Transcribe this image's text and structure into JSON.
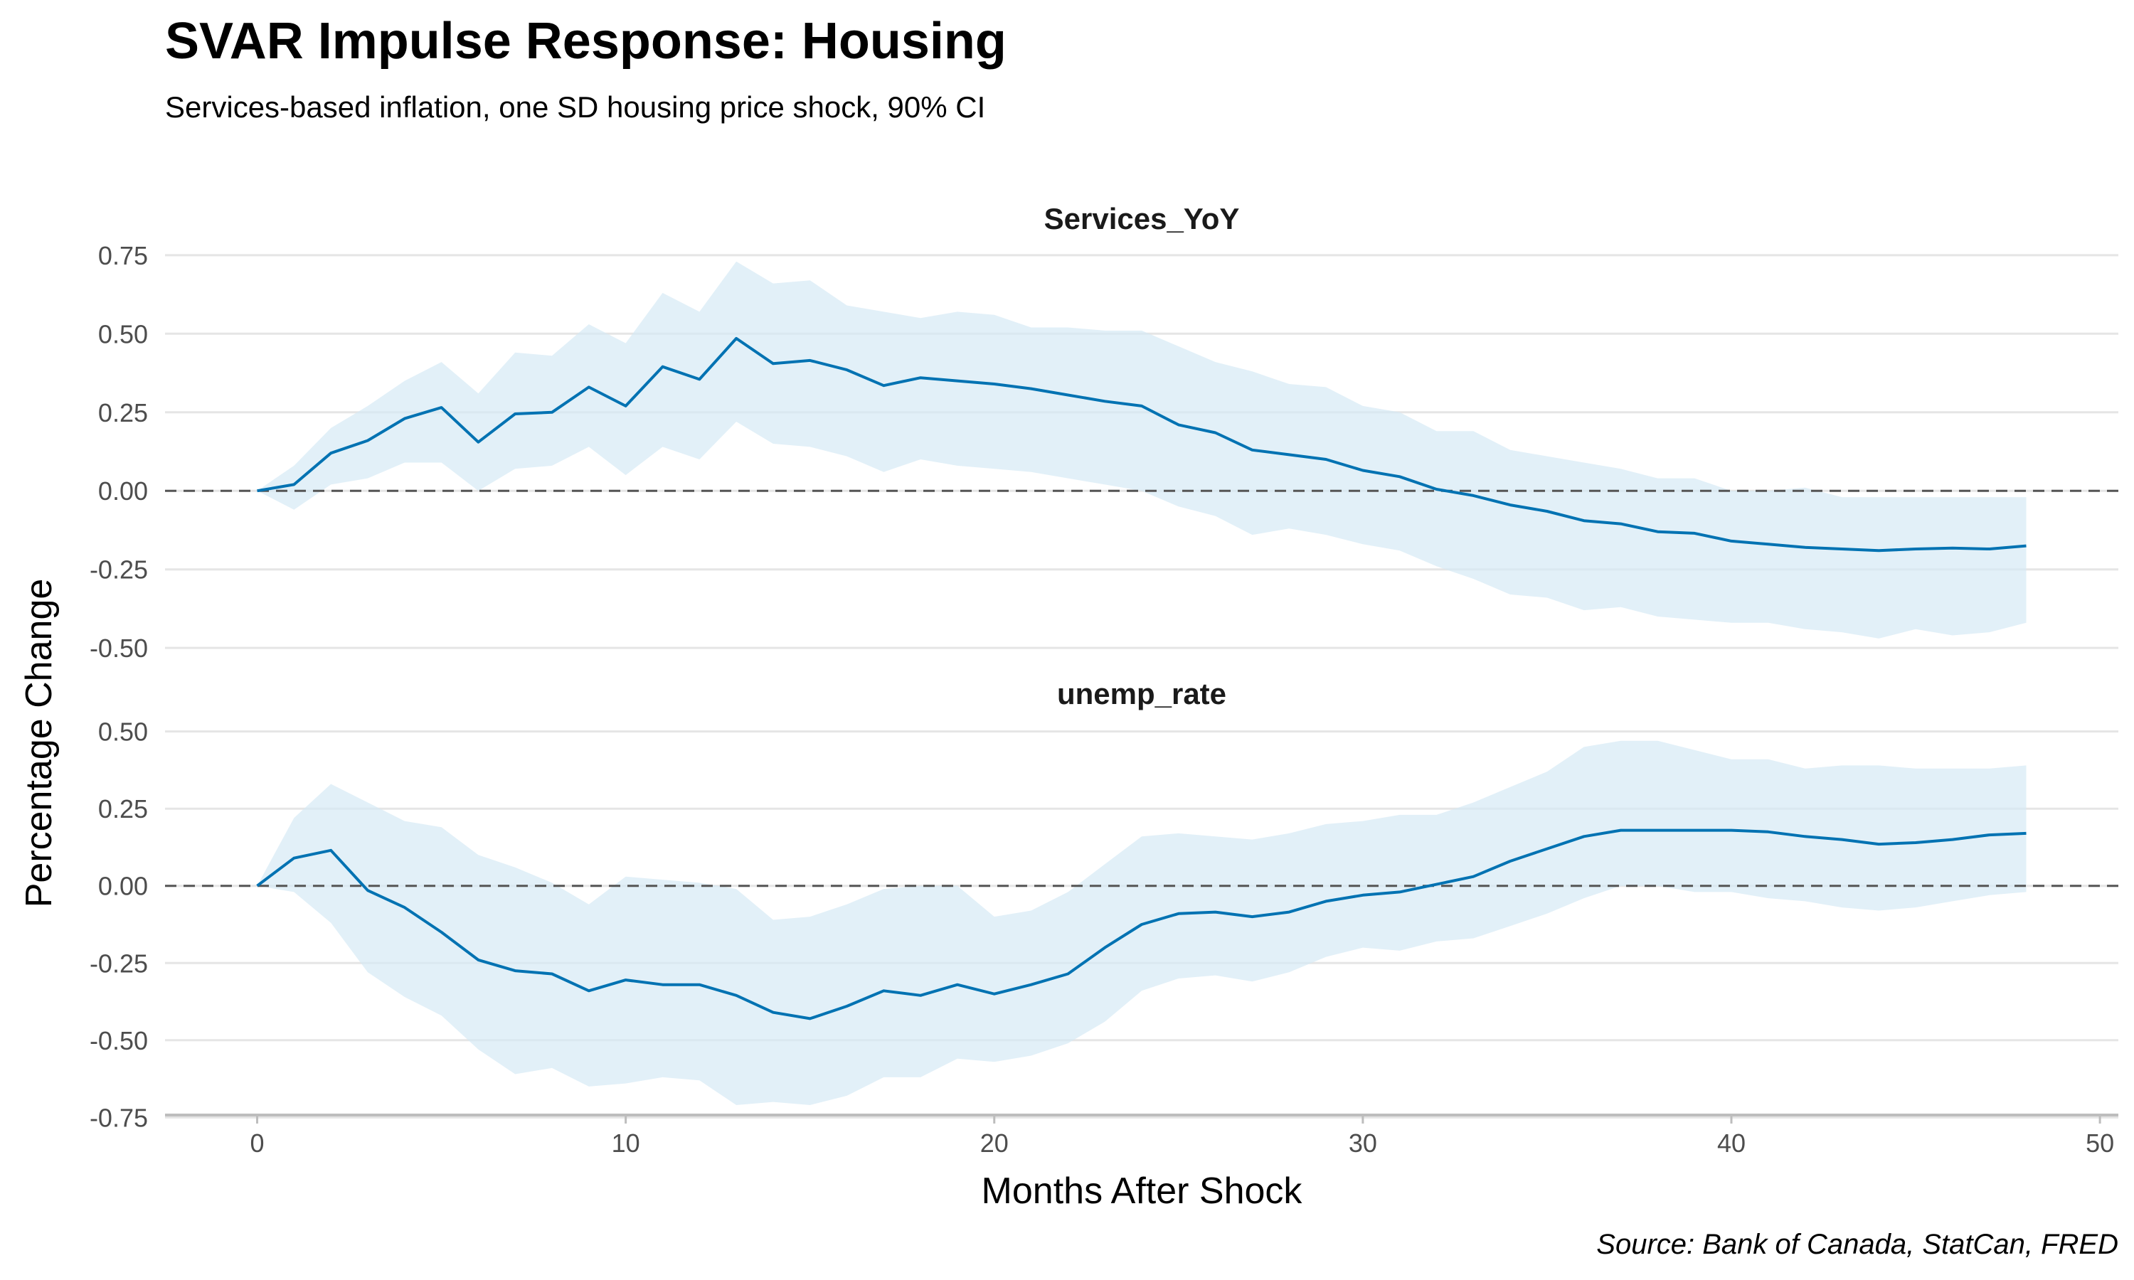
{
  "chart_data": {
    "type": "line",
    "title": "SVAR Impulse Response: Housing",
    "subtitle": "Services-based inflation, one SD housing price shock, 90% CI",
    "caption": "Source: Bank of Canada, StatCan, FRED",
    "xlabel": "Months After Shock",
    "ylabel": "Percentage Change",
    "xlim": [
      -2.5,
      50.5
    ],
    "x_ticks": [
      0,
      10,
      20,
      30,
      40,
      50
    ],
    "x_tick_labels": [
      "0",
      "10",
      "20",
      "30",
      "40",
      "50"
    ],
    "grid": "horizontal",
    "zero_line": "dashed",
    "colors": {
      "line": "#0072b2",
      "band": "#d6e9f5",
      "grid": "#e5e5e5",
      "zero": "#555555"
    },
    "panels": [
      {
        "name": "Services_YoY",
        "ylim": [
          -0.52,
          0.77
        ],
        "y_ticks": [
          -0.5,
          -0.25,
          0,
          0.25,
          0.5,
          0.75
        ],
        "y_tick_labels": [
          "-0.50",
          "-0.25",
          "0.00",
          "0.25",
          "0.50",
          "0.75"
        ],
        "x": [
          0,
          1,
          2,
          3,
          4,
          5,
          6,
          7,
          8,
          9,
          10,
          11,
          12,
          13,
          14,
          15,
          16,
          17,
          18,
          19,
          20,
          21,
          22,
          23,
          24,
          25,
          26,
          27,
          28,
          29,
          30,
          31,
          32,
          33,
          34,
          35,
          36,
          37,
          38,
          39,
          40,
          41,
          42,
          43,
          44,
          45,
          46,
          47,
          48
        ],
        "estimate": [
          0,
          0.02,
          0.12,
          0.16,
          0.23,
          0.265,
          0.155,
          0.245,
          0.25,
          0.33,
          0.27,
          0.395,
          0.355,
          0.485,
          0.405,
          0.415,
          0.385,
          0.335,
          0.36,
          0.35,
          0.34,
          0.325,
          0.305,
          0.285,
          0.27,
          0.21,
          0.185,
          0.13,
          0.115,
          0.1,
          0.065,
          0.045,
          0.005,
          -0.015,
          -0.045,
          -0.065,
          -0.095,
          -0.105,
          -0.13,
          -0.135,
          -0.16,
          -0.17,
          -0.18,
          -0.185,
          -0.19,
          -0.185,
          -0.182,
          -0.185,
          -0.175
        ],
        "lower": [
          0,
          -0.06,
          0.02,
          0.04,
          0.09,
          0.09,
          0.0,
          0.07,
          0.08,
          0.14,
          0.05,
          0.14,
          0.1,
          0.22,
          0.15,
          0.14,
          0.11,
          0.06,
          0.1,
          0.08,
          0.07,
          0.06,
          0.04,
          0.02,
          0.0,
          -0.05,
          -0.08,
          -0.14,
          -0.12,
          -0.14,
          -0.17,
          -0.19,
          -0.24,
          -0.28,
          -0.33,
          -0.34,
          -0.38,
          -0.37,
          -0.4,
          -0.41,
          -0.42,
          -0.42,
          -0.44,
          -0.45,
          -0.47,
          -0.44,
          -0.46,
          -0.45,
          -0.42
        ],
        "upper": [
          0,
          0.08,
          0.2,
          0.27,
          0.35,
          0.41,
          0.31,
          0.44,
          0.43,
          0.53,
          0.47,
          0.63,
          0.57,
          0.73,
          0.66,
          0.67,
          0.59,
          0.57,
          0.55,
          0.57,
          0.56,
          0.52,
          0.52,
          0.51,
          0.51,
          0.46,
          0.41,
          0.38,
          0.34,
          0.33,
          0.27,
          0.25,
          0.19,
          0.19,
          0.13,
          0.11,
          0.09,
          0.07,
          0.04,
          0.04,
          0.0,
          0.0,
          0.01,
          -0.02,
          -0.02,
          -0.02,
          -0.02,
          -0.02,
          -0.02
        ]
      },
      {
        "name": "unemp_rate",
        "ylim": [
          -0.77,
          0.52
        ],
        "y_ticks": [
          -0.75,
          -0.5,
          -0.25,
          0,
          0.25,
          0.5
        ],
        "y_tick_labels": [
          "-0.75",
          "-0.50",
          "-0.25",
          "0.00",
          "0.25",
          "0.50"
        ],
        "x": [
          0,
          1,
          2,
          3,
          4,
          5,
          6,
          7,
          8,
          9,
          10,
          11,
          12,
          13,
          14,
          15,
          16,
          17,
          18,
          19,
          20,
          21,
          22,
          23,
          24,
          25,
          26,
          27,
          28,
          29,
          30,
          31,
          32,
          33,
          34,
          35,
          36,
          37,
          38,
          39,
          40,
          41,
          42,
          43,
          44,
          45,
          46,
          47,
          48
        ],
        "estimate": [
          0,
          0.09,
          0.115,
          -0.015,
          -0.07,
          -0.15,
          -0.24,
          -0.275,
          -0.285,
          -0.34,
          -0.305,
          -0.32,
          -0.32,
          -0.355,
          -0.41,
          -0.43,
          -0.39,
          -0.34,
          -0.355,
          -0.32,
          -0.35,
          -0.32,
          -0.285,
          -0.2,
          -0.125,
          -0.09,
          -0.085,
          -0.1,
          -0.085,
          -0.05,
          -0.03,
          -0.02,
          0.005,
          0.03,
          0.08,
          0.12,
          0.16,
          0.18,
          0.18,
          0.18,
          0.18,
          0.175,
          0.16,
          0.15,
          0.135,
          0.14,
          0.15,
          0.165,
          0.17
        ],
        "lower": [
          0,
          -0.02,
          -0.12,
          -0.28,
          -0.36,
          -0.42,
          -0.53,
          -0.61,
          -0.59,
          -0.65,
          -0.64,
          -0.62,
          -0.63,
          -0.71,
          -0.7,
          -0.71,
          -0.68,
          -0.62,
          -0.62,
          -0.56,
          -0.57,
          -0.55,
          -0.51,
          -0.44,
          -0.34,
          -0.3,
          -0.29,
          -0.31,
          -0.28,
          -0.23,
          -0.2,
          -0.21,
          -0.18,
          -0.17,
          -0.13,
          -0.09,
          -0.04,
          0.0,
          0.0,
          -0.02,
          -0.02,
          -0.04,
          -0.05,
          -0.07,
          -0.08,
          -0.07,
          -0.05,
          -0.03,
          -0.02
        ],
        "upper": [
          0,
          0.22,
          0.33,
          0.27,
          0.21,
          0.19,
          0.1,
          0.06,
          0.01,
          -0.06,
          0.03,
          0.02,
          0.01,
          -0.01,
          -0.11,
          -0.1,
          -0.06,
          -0.01,
          0.0,
          0.0,
          -0.1,
          -0.08,
          -0.02,
          0.07,
          0.16,
          0.17,
          0.16,
          0.15,
          0.17,
          0.2,
          0.21,
          0.23,
          0.23,
          0.27,
          0.32,
          0.37,
          0.45,
          0.47,
          0.47,
          0.44,
          0.41,
          0.41,
          0.38,
          0.39,
          0.39,
          0.38,
          0.38,
          0.38,
          0.39
        ]
      }
    ]
  }
}
